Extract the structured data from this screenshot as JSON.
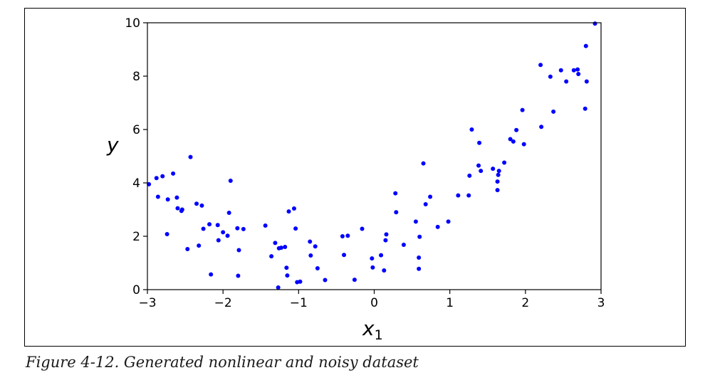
{
  "figure": {
    "caption": "Figure 4-12. Generated nonlinear and noisy dataset"
  },
  "chart_data": {
    "type": "scatter",
    "title": "",
    "xlabel_base": "x",
    "xlabel_sub": "1",
    "ylabel": "y",
    "xlim": [
      -3,
      3
    ],
    "ylim": [
      0,
      10
    ],
    "xticks": [
      -3,
      -2,
      -1,
      0,
      1,
      2,
      3
    ],
    "xtick_labels": [
      "−3",
      "−2",
      "−1",
      "0",
      "1",
      "2",
      "3"
    ],
    "yticks": [
      0,
      2,
      4,
      6,
      8,
      10
    ],
    "ytick_labels": [
      "0",
      "2",
      "4",
      "6",
      "8",
      "10"
    ],
    "grid": false,
    "marker_color": "#0000ff",
    "series": [
      {
        "x": [
          -2.98,
          -2.88,
          -2.86,
          -2.8,
          -2.74,
          -2.73,
          -2.66,
          -2.61,
          -2.6,
          -2.55,
          -2.54,
          -2.47,
          -2.43,
          -2.35,
          -2.32,
          -2.28,
          -2.26,
          -2.18,
          -2.16,
          -2.07,
          -2.06,
          -2.0,
          -1.94,
          -1.92,
          -1.9,
          -1.81,
          -1.8,
          -1.79,
          -1.73,
          -1.44,
          -1.36,
          -1.31,
          -1.27,
          -1.26,
          -1.23,
          -1.18,
          -1.16,
          -1.15,
          -1.13,
          -1.06,
          -1.04,
          -1.02,
          -0.98,
          -0.85,
          -0.84,
          -0.78,
          -0.75,
          -0.65,
          -0.42,
          -0.4,
          -0.35,
          -0.26,
          -0.16,
          -0.03,
          -0.02,
          0.09,
          0.13,
          0.15,
          0.16,
          0.28,
          0.29,
          0.39,
          0.55,
          0.59,
          0.59,
          0.6,
          0.65,
          0.68,
          0.74,
          0.84,
          0.98,
          1.11,
          1.25,
          1.26,
          1.29,
          1.38,
          1.39,
          1.41,
          1.57,
          1.63,
          1.63,
          1.64,
          1.65,
          1.72,
          1.8,
          1.84,
          1.88,
          1.96,
          1.98,
          2.2,
          2.21,
          2.33,
          2.37,
          2.47,
          2.54,
          2.64,
          2.69,
          2.7,
          2.79,
          2.8,
          2.81,
          2.92
        ],
        "y": [
          3.95,
          4.18,
          3.48,
          4.25,
          2.08,
          3.38,
          4.35,
          3.45,
          3.05,
          2.95,
          3.0,
          1.52,
          4.97,
          3.22,
          1.65,
          3.15,
          2.28,
          2.45,
          0.57,
          2.42,
          1.85,
          2.15,
          2.02,
          2.88,
          4.08,
          2.3,
          0.52,
          1.48,
          2.27,
          2.4,
          1.25,
          1.75,
          0.08,
          1.55,
          1.57,
          1.6,
          0.82,
          0.53,
          2.93,
          3.04,
          2.29,
          0.28,
          0.3,
          1.8,
          1.28,
          1.62,
          0.8,
          0.36,
          2.0,
          1.3,
          2.02,
          0.37,
          2.28,
          1.17,
          0.83,
          1.29,
          0.72,
          1.85,
          2.07,
          3.61,
          2.9,
          1.68,
          2.55,
          0.78,
          1.2,
          1.98,
          4.73,
          3.2,
          3.48,
          2.35,
          2.55,
          3.53,
          3.53,
          4.27,
          6.0,
          4.65,
          5.5,
          4.45,
          4.53,
          4.05,
          3.73,
          4.3,
          4.45,
          4.76,
          5.64,
          5.55,
          5.98,
          6.73,
          5.45,
          8.42,
          6.1,
          7.98,
          6.67,
          8.22,
          7.8,
          8.22,
          8.25,
          8.08,
          6.78,
          9.13,
          7.8,
          9.97
        ]
      }
    ]
  }
}
